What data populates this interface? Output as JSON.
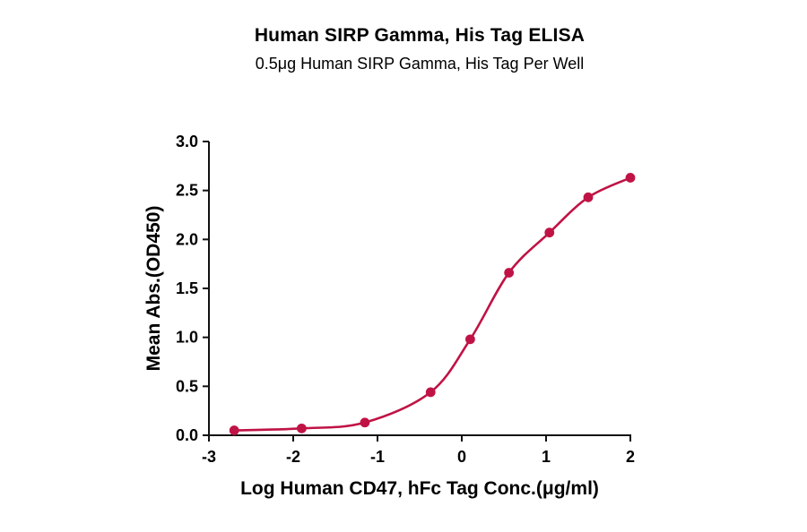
{
  "chart_data": {
    "type": "scatter",
    "title": "Human SIRP Gamma, His Tag ELISA",
    "subtitle": "0.5μg Human SIRP Gamma, His Tag Per Well",
    "xlabel": "Log Human CD47, hFc Tag Conc.(μg/ml)",
    "ylabel": "Mean Abs.(OD450)",
    "x": [
      -2.7,
      -1.9,
      -1.15,
      -0.37,
      0.1,
      0.56,
      1.04,
      1.5,
      2.0
    ],
    "y": [
      0.05,
      0.07,
      0.13,
      0.44,
      0.98,
      1.66,
      2.07,
      2.43,
      2.63
    ],
    "xlim": [
      -3,
      2
    ],
    "ylim": [
      0,
      3
    ],
    "xticks": [
      "-3",
      "-2",
      "-1",
      "0",
      "1",
      "2"
    ],
    "yticks": [
      "0.0",
      "0.5",
      "1.0",
      "1.5",
      "2.0",
      "2.5",
      "3.0"
    ],
    "grid": false,
    "legend": "none",
    "curve": "sigmoid 4PL fit through points",
    "colors": {
      "curve": "#c01345",
      "marker": "#c01345",
      "axis": "#111111",
      "text": "#000000"
    }
  }
}
